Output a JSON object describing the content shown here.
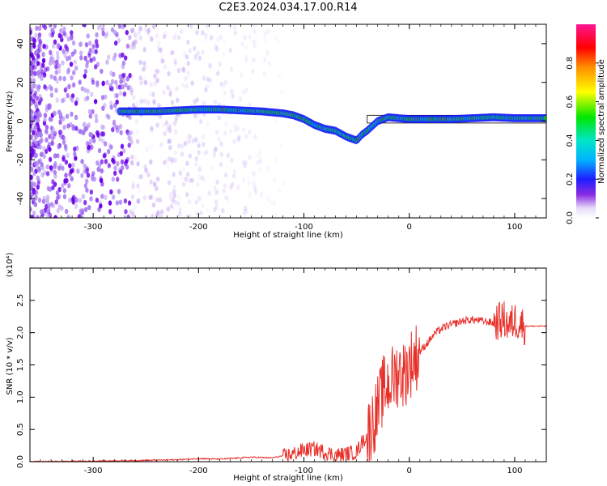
{
  "title": "C2E3.2024.034.17.00.R14",
  "colors": {
    "snr_line": "#e8302a",
    "spectro_light": "#d9c6f2",
    "spectro_dark": "#6a00e8",
    "axis": "#000000"
  },
  "chart_data": [
    {
      "type": "heatmap",
      "xlabel": "Height of straight line (km)",
      "ylabel": "Frequency (Hz)",
      "xlim": [
        -360,
        130
      ],
      "ylim": [
        -50,
        50
      ],
      "xticks": [
        -300,
        -200,
        -100,
        0,
        100
      ],
      "xtick_labels": [
        "-300",
        "-200",
        "-100",
        "0",
        "100"
      ],
      "yticks": [
        -40,
        -20,
        0,
        20,
        40
      ],
      "ytick_labels": [
        "-40",
        "-20",
        "0",
        "20",
        "40"
      ],
      "colorbar": {
        "label": "Normalized spectral amplitude",
        "ticks": [
          0.0,
          0.2,
          0.4,
          0.6,
          0.8
        ],
        "tick_labels": [
          "0.0",
          "0.2",
          "0.4",
          "0.6",
          "0.8"
        ],
        "range": [
          0,
          1
        ]
      },
      "ridge": {
        "x": [
          -275,
          -260,
          -240,
          -220,
          -200,
          -180,
          -160,
          -140,
          -120,
          -110,
          -100,
          -90,
          -80,
          -70,
          -60,
          -50,
          -45,
          -40,
          -30,
          -20,
          -10,
          0,
          20,
          40,
          60,
          80,
          100,
          130
        ],
        "y": [
          5,
          5,
          5,
          5.5,
          6,
          6,
          5.5,
          5,
          4,
          3,
          1,
          -2,
          -4,
          -5,
          -8,
          -10,
          -7,
          -5,
          0,
          2,
          1.5,
          1,
          1,
          1,
          1.5,
          2,
          1.5,
          1.5
        ]
      },
      "background": {
        "dense_noise_until": -265,
        "noise_fades_at": -140
      }
    },
    {
      "type": "line",
      "xlabel": "Height of straight line (km)",
      "ylabel": "SNR (10 * v/v)",
      "y_multiplier": "(x10⁴)",
      "xlim": [
        -360,
        130
      ],
      "ylim": [
        0,
        3.0
      ],
      "xticks": [
        -300,
        -200,
        -100,
        0,
        100
      ],
      "xtick_labels": [
        "-300",
        "-200",
        "-100",
        "0",
        "100"
      ],
      "yticks": [
        0.0,
        0.5,
        1.0,
        1.5,
        2.0,
        2.5
      ],
      "ytick_labels": [
        "0.0",
        "0.5",
        "1.0",
        "1.5",
        "2.0",
        "2.5"
      ],
      "series": [
        {
          "x": [
            -360,
            -300,
            -250,
            -220,
            -200,
            -180,
            -150,
            -130,
            -110,
            -100,
            -90,
            -80,
            -70,
            -60,
            -50,
            -45,
            -40,
            -35,
            -30,
            -25,
            -20,
            -15,
            -10,
            -5,
            0,
            5,
            10,
            15,
            20,
            25,
            30,
            35,
            40,
            50,
            60,
            70,
            80,
            85,
            90,
            95,
            100,
            105,
            110,
            120,
            130
          ],
          "y": [
            0.0,
            0.01,
            0.02,
            0.03,
            0.05,
            0.04,
            0.07,
            0.06,
            0.12,
            0.18,
            0.2,
            0.15,
            0.1,
            0.12,
            0.15,
            0.3,
            0.4,
            0.6,
            0.8,
            1.1,
            1.2,
            1.3,
            1.4,
            1.35,
            1.5,
            1.6,
            1.7,
            1.8,
            1.9,
            2.0,
            2.05,
            2.1,
            2.12,
            2.18,
            2.2,
            2.18,
            2.15,
            2.18,
            2.2,
            2.1,
            2.2,
            2.15,
            2.1,
            2.1,
            2.1
          ]
        }
      ]
    }
  ]
}
